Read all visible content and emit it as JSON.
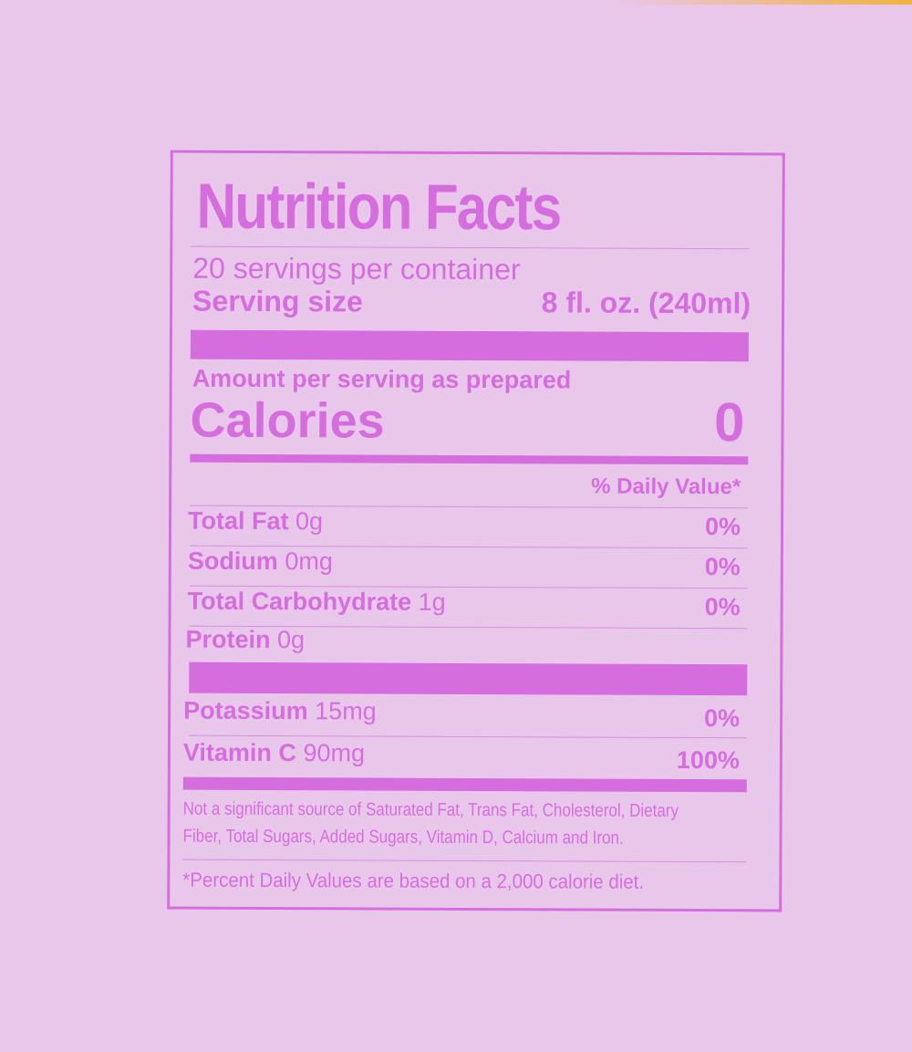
{
  "colors": {
    "background": "#e9c7ea",
    "ink": "#d66ddf"
  },
  "label": {
    "title": "Nutrition Facts",
    "servings": "20 servings per container",
    "serving_size_label": "Serving size",
    "serving_size_value": "8 fl. oz. (240ml)",
    "amount_per_serving": "Amount per serving as prepared",
    "calories_label": "Calories",
    "calories_value": "0",
    "daily_value_header": "% Daily Value*",
    "nutrients": [
      {
        "name": "Total Fat",
        "amount": "0g",
        "dv": "0%"
      },
      {
        "name": "Sodium",
        "amount": "0mg",
        "dv": "0%"
      },
      {
        "name": "Total Carbohydrate",
        "amount": "1g",
        "dv": "0%"
      },
      {
        "name": "Protein",
        "amount": "0g",
        "dv": ""
      },
      {
        "name": "Potassium",
        "amount": "15mg",
        "dv": "0%"
      },
      {
        "name": "Vitamin C",
        "amount": "90mg",
        "dv": "100%"
      }
    ],
    "footnote_1a": "Not a significant source of Saturated Fat, Trans Fat, Cholesterol, Dietary",
    "footnote_1b": "Fiber, Total Sugars, Added Sugars, Vitamin D, Calcium and Iron.",
    "footnote_2": "*Percent Daily Values are based on a 2,000 calorie diet."
  }
}
